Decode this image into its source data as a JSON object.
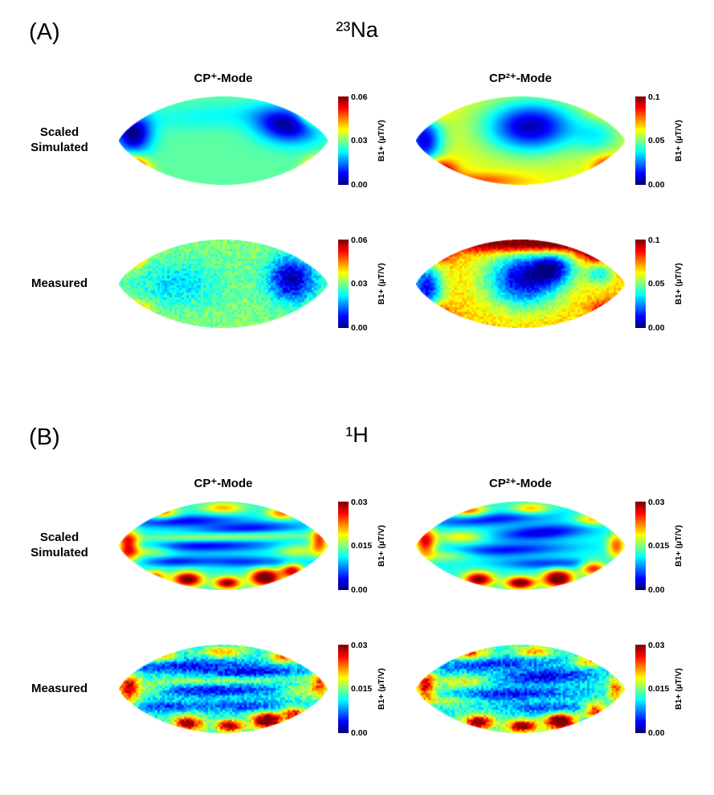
{
  "figure": {
    "panels": [
      {
        "label": "(A)",
        "title": "²³Na",
        "col_headers": [
          "CP⁺-Mode",
          "CP²⁺-Mode"
        ],
        "rows": [
          {
            "label": "Scaled\nSimulated"
          },
          {
            "label": "Measured"
          }
        ]
      },
      {
        "label": "(B)",
        "title": "¹H",
        "col_headers": [
          "CP⁺-Mode",
          "CP²⁺-Mode"
        ],
        "rows": [
          {
            "label": "Scaled\nSimulated"
          },
          {
            "label": "Measured"
          }
        ]
      }
    ]
  },
  "chart_data": {
    "type": "heatmap",
    "colormap": "jet",
    "shape": "lens",
    "value_quantity": "B1+ transmit field map",
    "units": "µT/V",
    "blob_format": [
      "x_norm",
      "y_norm",
      "sigma_x",
      "sigma_y",
      "amplitude",
      "rotation_deg"
    ],
    "maps": [
      {
        "panel": "A",
        "row": "Scaled Simulated",
        "col": "CP+-Mode",
        "vmax": 0.06,
        "ticks": [
          "0.06",
          "0.03",
          "0.00"
        ],
        "colorbar_label": "B1+ (µT/V)",
        "base": 0.028,
        "noise": 0,
        "blobs": [
          [
            0.07,
            0.42,
            0.06,
            0.16,
            -0.028,
            0
          ],
          [
            0.8,
            0.33,
            0.1,
            0.14,
            -0.026,
            -15
          ],
          [
            0.45,
            0.22,
            0.28,
            0.1,
            -0.005,
            -8
          ],
          [
            0.06,
            0.84,
            0.05,
            0.1,
            0.052,
            0
          ],
          [
            0.94,
            0.14,
            0.045,
            0.1,
            0.045,
            0
          ],
          [
            0.05,
            0.16,
            0.035,
            0.08,
            0.026,
            0
          ],
          [
            0.95,
            0.82,
            0.04,
            0.08,
            0.03,
            0
          ]
        ]
      },
      {
        "panel": "A",
        "row": "Scaled Simulated",
        "col": "CP2+-Mode",
        "vmax": 0.1,
        "ticks": [
          "0.1",
          "0.05",
          "0.00"
        ],
        "colorbar_label": "B1+ (µT/V)",
        "base": 0.06,
        "noise": 0,
        "blobs": [
          [
            0.55,
            0.34,
            0.15,
            0.2,
            -0.055,
            0
          ],
          [
            0.04,
            0.5,
            0.06,
            0.22,
            -0.05,
            0
          ],
          [
            0.87,
            0.45,
            0.08,
            0.15,
            -0.018,
            0
          ],
          [
            0.1,
            0.86,
            0.06,
            0.1,
            0.055,
            0
          ],
          [
            0.06,
            0.14,
            0.05,
            0.09,
            0.05,
            0
          ],
          [
            0.92,
            0.8,
            0.05,
            0.09,
            0.032,
            0
          ],
          [
            0.9,
            0.12,
            0.05,
            0.08,
            0.02,
            0
          ],
          [
            0.3,
            0.95,
            0.15,
            0.06,
            0.02,
            0
          ]
        ]
      },
      {
        "panel": "A",
        "row": "Measured",
        "col": "CP+-Mode",
        "vmax": 0.06,
        "ticks": [
          "0.06",
          "0.03",
          "0.00"
        ],
        "colorbar_label": "B1+ (µT/V)",
        "base": 0.03,
        "noise": 0.004,
        "blobs": [
          [
            0.83,
            0.45,
            0.08,
            0.18,
            -0.028,
            0
          ],
          [
            0.28,
            0.5,
            0.14,
            0.18,
            -0.01,
            0
          ],
          [
            0.05,
            0.14,
            0.045,
            0.09,
            0.045,
            0
          ],
          [
            0.06,
            0.86,
            0.05,
            0.09,
            0.05,
            0
          ],
          [
            0.94,
            0.13,
            0.04,
            0.08,
            0.035,
            0
          ],
          [
            0.94,
            0.85,
            0.04,
            0.07,
            0.02,
            0
          ]
        ]
      },
      {
        "panel": "A",
        "row": "Measured",
        "col": "CP2+-Mode",
        "vmax": 0.1,
        "ticks": [
          "0.1",
          "0.05",
          "0.00"
        ],
        "colorbar_label": "B1+ (µT/V)",
        "base": 0.068,
        "noise": 0.005,
        "blobs": [
          [
            0.52,
            0.45,
            0.13,
            0.22,
            -0.06,
            0
          ],
          [
            0.66,
            0.32,
            0.07,
            0.12,
            -0.04,
            0
          ],
          [
            0.05,
            0.55,
            0.055,
            0.2,
            -0.055,
            0
          ],
          [
            0.88,
            0.38,
            0.045,
            0.1,
            -0.03,
            0
          ],
          [
            0.55,
            0.05,
            0.28,
            0.07,
            0.048,
            0
          ],
          [
            0.88,
            0.12,
            0.06,
            0.1,
            0.05,
            0
          ],
          [
            0.1,
            0.12,
            0.05,
            0.09,
            0.045,
            0
          ],
          [
            0.08,
            0.86,
            0.05,
            0.09,
            0.045,
            0
          ],
          [
            0.92,
            0.82,
            0.05,
            0.08,
            0.035,
            0
          ]
        ]
      },
      {
        "panel": "B",
        "row": "Scaled Simulated",
        "col": "CP+-Mode",
        "vmax": 0.03,
        "ticks": [
          "0.03",
          "0.015",
          "0.00"
        ],
        "colorbar_label": "B1+ (µT/V)",
        "base": 0.012,
        "noise": 0,
        "blobs": [
          [
            0.3,
            0.22,
            0.18,
            0.045,
            -0.0085,
            -5
          ],
          [
            0.62,
            0.3,
            0.18,
            0.05,
            -0.008,
            -5
          ],
          [
            0.4,
            0.5,
            0.25,
            0.05,
            -0.0085,
            -2
          ],
          [
            0.6,
            0.68,
            0.2,
            0.045,
            -0.007,
            3
          ],
          [
            0.25,
            0.68,
            0.1,
            0.04,
            -0.006,
            0
          ],
          [
            0.5,
            0.4,
            0.28,
            0.035,
            0.006,
            -3
          ],
          [
            0.15,
            0.55,
            0.08,
            0.05,
            0.007,
            0
          ],
          [
            0.85,
            0.55,
            0.07,
            0.05,
            0.006,
            0
          ],
          [
            0.33,
            0.88,
            0.05,
            0.06,
            0.02,
            0
          ],
          [
            0.52,
            0.92,
            0.045,
            0.05,
            0.018,
            0
          ],
          [
            0.7,
            0.86,
            0.05,
            0.07,
            0.022,
            0
          ],
          [
            0.83,
            0.78,
            0.04,
            0.06,
            0.016,
            0
          ],
          [
            0.17,
            0.85,
            0.04,
            0.05,
            0.012,
            0
          ],
          [
            0.045,
            0.5,
            0.035,
            0.13,
            0.016,
            0
          ],
          [
            0.21,
            0.12,
            0.05,
            0.05,
            0.011,
            0
          ],
          [
            0.5,
            0.07,
            0.07,
            0.045,
            0.009,
            0
          ],
          [
            0.78,
            0.13,
            0.05,
            0.05,
            0.011,
            0
          ],
          [
            0.96,
            0.45,
            0.03,
            0.1,
            0.013,
            0
          ]
        ]
      },
      {
        "panel": "B",
        "row": "Scaled Simulated",
        "col": "CP2+-Mode",
        "vmax": 0.03,
        "ticks": [
          "0.03",
          "0.015",
          "0.00"
        ],
        "colorbar_label": "B1+ (µT/V)",
        "base": 0.012,
        "noise": 0,
        "blobs": [
          [
            0.35,
            0.2,
            0.2,
            0.05,
            -0.008,
            -8
          ],
          [
            0.6,
            0.35,
            0.16,
            0.06,
            -0.0095,
            -10
          ],
          [
            0.42,
            0.55,
            0.22,
            0.05,
            -0.008,
            -5
          ],
          [
            0.65,
            0.7,
            0.18,
            0.045,
            -0.007,
            0
          ],
          [
            0.22,
            0.4,
            0.08,
            0.05,
            0.007,
            0
          ],
          [
            0.15,
            0.6,
            0.1,
            0.045,
            0.0065,
            0
          ],
          [
            0.85,
            0.2,
            0.06,
            0.05,
            0.009,
            0
          ],
          [
            0.3,
            0.88,
            0.05,
            0.06,
            0.019,
            0
          ],
          [
            0.5,
            0.92,
            0.05,
            0.05,
            0.02,
            0
          ],
          [
            0.68,
            0.87,
            0.05,
            0.07,
            0.022,
            0
          ],
          [
            0.85,
            0.75,
            0.045,
            0.06,
            0.015,
            0
          ],
          [
            0.045,
            0.45,
            0.035,
            0.12,
            0.015,
            0
          ],
          [
            0.25,
            0.1,
            0.06,
            0.05,
            0.012,
            0
          ],
          [
            0.55,
            0.08,
            0.06,
            0.045,
            0.009,
            0
          ],
          [
            0.96,
            0.5,
            0.03,
            0.1,
            0.012,
            0
          ]
        ]
      },
      {
        "panel": "B",
        "row": "Measured",
        "col": "CP+-Mode",
        "vmax": 0.03,
        "ticks": [
          "0.03",
          "0.015",
          "0.00"
        ],
        "colorbar_label": "B1+ (µT/V)",
        "base": 0.012,
        "noise": 0.0025,
        "blobs": [
          [
            0.32,
            0.24,
            0.2,
            0.05,
            -0.008,
            -4
          ],
          [
            0.64,
            0.32,
            0.17,
            0.05,
            -0.0085,
            -6
          ],
          [
            0.42,
            0.52,
            0.26,
            0.05,
            -0.008,
            -2
          ],
          [
            0.62,
            0.7,
            0.18,
            0.045,
            -0.0065,
            2
          ],
          [
            0.22,
            0.7,
            0.1,
            0.04,
            -0.006,
            0
          ],
          [
            0.5,
            0.4,
            0.26,
            0.035,
            0.006,
            -3
          ],
          [
            0.14,
            0.52,
            0.08,
            0.05,
            0.007,
            0
          ],
          [
            0.86,
            0.52,
            0.06,
            0.05,
            0.006,
            0
          ],
          [
            0.33,
            0.89,
            0.05,
            0.06,
            0.019,
            0
          ],
          [
            0.53,
            0.92,
            0.045,
            0.05,
            0.018,
            0
          ],
          [
            0.71,
            0.86,
            0.05,
            0.07,
            0.022,
            0
          ],
          [
            0.84,
            0.78,
            0.04,
            0.06,
            0.015,
            0
          ],
          [
            0.045,
            0.5,
            0.035,
            0.12,
            0.015,
            0
          ],
          [
            0.2,
            0.12,
            0.05,
            0.05,
            0.011,
            0
          ],
          [
            0.5,
            0.08,
            0.07,
            0.045,
            0.009,
            0
          ],
          [
            0.79,
            0.14,
            0.05,
            0.05,
            0.011,
            0
          ],
          [
            0.96,
            0.45,
            0.03,
            0.1,
            0.012,
            0
          ]
        ]
      },
      {
        "panel": "B",
        "row": "Measured",
        "col": "CP2+-Mode",
        "vmax": 0.03,
        "ticks": [
          "0.03",
          "0.015",
          "0.00"
        ],
        "colorbar_label": "B1+ (µT/V)",
        "base": 0.012,
        "noise": 0.0025,
        "blobs": [
          [
            0.36,
            0.22,
            0.2,
            0.05,
            -0.0075,
            -8
          ],
          [
            0.62,
            0.36,
            0.16,
            0.06,
            -0.009,
            -9
          ],
          [
            0.44,
            0.56,
            0.22,
            0.05,
            -0.008,
            -4
          ],
          [
            0.66,
            0.72,
            0.17,
            0.045,
            -0.0065,
            0
          ],
          [
            0.23,
            0.42,
            0.08,
            0.05,
            0.007,
            0
          ],
          [
            0.16,
            0.62,
            0.1,
            0.045,
            0.0065,
            0
          ],
          [
            0.84,
            0.18,
            0.06,
            0.05,
            0.01,
            0
          ],
          [
            0.3,
            0.88,
            0.05,
            0.06,
            0.019,
            0
          ],
          [
            0.51,
            0.92,
            0.05,
            0.05,
            0.02,
            0
          ],
          [
            0.69,
            0.87,
            0.05,
            0.07,
            0.022,
            0
          ],
          [
            0.86,
            0.74,
            0.045,
            0.06,
            0.015,
            0
          ],
          [
            0.045,
            0.46,
            0.035,
            0.12,
            0.015,
            0
          ],
          [
            0.26,
            0.1,
            0.06,
            0.05,
            0.012,
            0
          ],
          [
            0.56,
            0.08,
            0.06,
            0.045,
            0.01,
            0
          ],
          [
            0.96,
            0.5,
            0.03,
            0.1,
            0.012,
            0
          ]
        ]
      }
    ]
  }
}
